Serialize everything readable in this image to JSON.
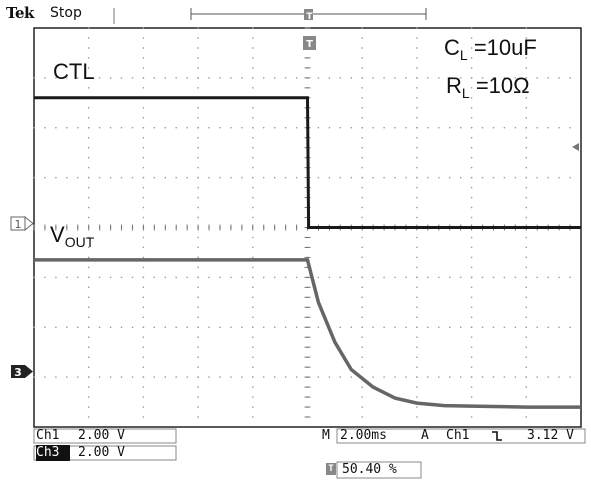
{
  "header": {
    "brand": "Tek",
    "status": "Stop"
  },
  "annotations": {
    "ctl_label": "CTL",
    "vout_main": "V",
    "vout_sub": "OUT",
    "cl_main": "C",
    "cl_sub": "L",
    "cl_value": "=10uF",
    "rl_main": "R",
    "rl_sub": "L",
    "rl_value": "=10Ω"
  },
  "markers": {
    "trigger_position": "T",
    "channel1": "1",
    "channel3": "3"
  },
  "channels": [
    {
      "name": "Ch1",
      "scale": "2.00 V"
    },
    {
      "name": "Ch3",
      "scale": "2.00 V"
    }
  ],
  "timebase": {
    "prefix": "M",
    "value": "2.00ms",
    "trigger_mode": "A",
    "trigger_source": "Ch1",
    "trigger_slope_icon": "falling-edge-icon",
    "trigger_level": "3.12 V"
  },
  "trigger_position_percent": {
    "icon": "T",
    "value": "50.40 %"
  },
  "colors": {
    "ch1_trace": "#1a1a1a",
    "ch3_trace": "#666666",
    "grid": "#9a9a9a",
    "background": "#ffffff"
  },
  "chart_data": {
    "type": "line",
    "title": "",
    "xlabel": "",
    "ylabel": "",
    "x_unit_per_div": "2.00ms",
    "y_unit_per_div": "2.00 V",
    "grid_divisions": [
      10,
      8
    ],
    "series": [
      {
        "name": "CTL",
        "x_div": [
          0,
          5,
          5.02,
          10
        ],
        "y_div": [
          2.6,
          2.6,
          0.0,
          0.0
        ]
      },
      {
        "name": "VOUT",
        "x_div": [
          0,
          5.0,
          5.2,
          5.5,
          5.8,
          6.2,
          6.6,
          7.0,
          7.5,
          8.0,
          9.0,
          10.0
        ],
        "y_div": [
          -0.65,
          -0.65,
          -1.5,
          -2.3,
          -2.85,
          -3.2,
          -3.42,
          -3.52,
          -3.57,
          -3.58,
          -3.6,
          -3.6
        ]
      }
    ]
  }
}
